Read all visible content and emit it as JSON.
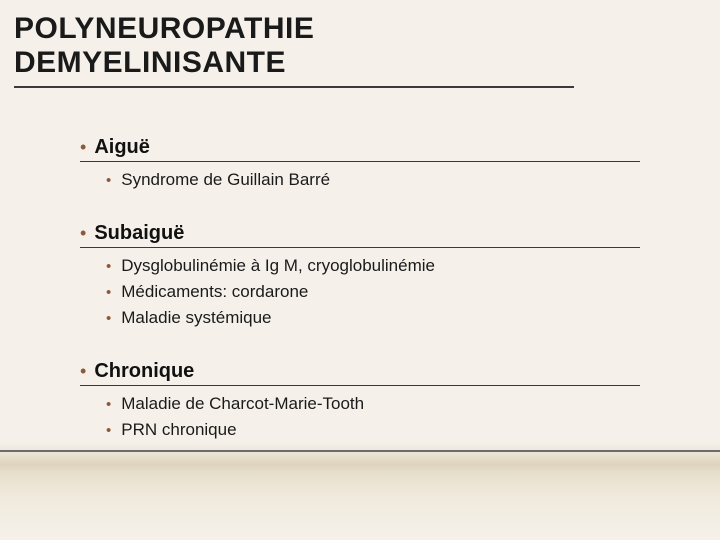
{
  "title": "POLYNEUROPATHIE DEMYELINISANTE",
  "title_fontsize": 30,
  "title_color": "#1a1a1a",
  "title_underline_color": "#3a3a3a",
  "bullet_color": "#8a5a3a",
  "section_header_fontsize": 20,
  "item_fontsize": 17,
  "section_underline_color": "#3a3a3a",
  "background_gradient": [
    "#f5f1ea",
    "#ded4be",
    "#f5f1ea"
  ],
  "ground_line_color": "#6b6b6b",
  "sections": [
    {
      "label": "Aiguë",
      "items": [
        "Syndrome de Guillain Barré"
      ]
    },
    {
      "label": "Subaiguë",
      "items": [
        "Dysglobulinémie à Ig M, cryoglobulinémie",
        "Médicaments: cordarone",
        "Maladie systémique"
      ]
    },
    {
      "label": "Chronique",
      "items": [
        "Maladie de Charcot-Marie-Tooth",
        "PRN chronique"
      ]
    }
  ]
}
